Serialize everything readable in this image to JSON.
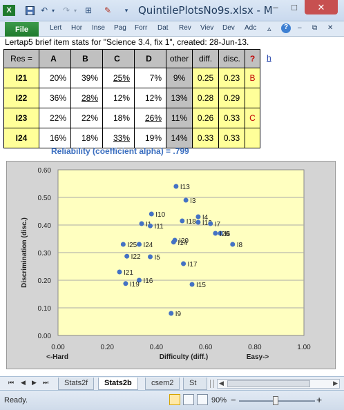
{
  "window": {
    "title": "QuintilePlotsNo9s.xlsx - M",
    "minimize": "–",
    "maximize": "□",
    "close": "✕"
  },
  "ribbon": {
    "file_tab": "File",
    "tabs": [
      "Lert",
      "Hor",
      "Inse",
      "Pag",
      "Forr",
      "Dat",
      "Rev",
      "Viev",
      "Dev",
      "Adc"
    ]
  },
  "sheet": {
    "header_line": "Lertap5 brief item stats for \"Science 3.4, fix 1\", created: 28-Jun-13.",
    "link_text": "h",
    "columns": [
      "Res =",
      "A",
      "B",
      "C",
      "D",
      "other",
      "diff.",
      "disc.",
      "?"
    ],
    "rows": [
      {
        "item": "I21",
        "A": "20%",
        "B": "39%",
        "C": "25%",
        "D": "7%",
        "other": "9%",
        "diff": "0.25",
        "disc": "0.23",
        "flag": "B",
        "key": "C"
      },
      {
        "item": "I22",
        "A": "36%",
        "B": "28%",
        "C": "12%",
        "D": "12%",
        "other": "13%",
        "diff": "0.28",
        "disc": "0.29",
        "flag": "",
        "key": "B"
      },
      {
        "item": "I23",
        "A": "22%",
        "B": "22%",
        "C": "18%",
        "D": "26%",
        "other": "11%",
        "diff": "0.26",
        "disc": "0.33",
        "flag": "C",
        "key": "D"
      },
      {
        "item": "I24",
        "A": "16%",
        "B": "18%",
        "C": "33%",
        "D": "19%",
        "other": "14%",
        "diff": "0.33",
        "disc": "0.33",
        "flag": "",
        "key": "C"
      }
    ],
    "reliability": "Reliability (coefficient alpha) =  .799"
  },
  "chart_data": {
    "type": "scatter",
    "xlabel": "Difficulty (diff.)",
    "ylabel": "Discrimination (disc.)",
    "xlabel_left": "<-Hard",
    "xlabel_right": "Easy->",
    "xlim": [
      0,
      1
    ],
    "ylim": [
      0,
      0.6
    ],
    "x_ticks": [
      "0.00",
      "0.20",
      "0.40",
      "0.60",
      "0.80",
      "1.00"
    ],
    "y_ticks": [
      "0.00",
      "0.10",
      "0.20",
      "0.30",
      "0.40",
      "0.50",
      "0.60"
    ],
    "grid": "y-major",
    "plot_bg": "#ffffc0",
    "marker_color": "#4472c4",
    "points": [
      {
        "label": "I13",
        "x": 0.48,
        "y": 0.54
      },
      {
        "label": "I3",
        "x": 0.52,
        "y": 0.49
      },
      {
        "label": "I10",
        "x": 0.38,
        "y": 0.44
      },
      {
        "label": "I4",
        "x": 0.57,
        "y": 0.43
      },
      {
        "label": "I1",
        "x": 0.34,
        "y": 0.405
      },
      {
        "label": "I18",
        "x": 0.505,
        "y": 0.415
      },
      {
        "label": "I12",
        "x": 0.57,
        "y": 0.41
      },
      {
        "label": "I7",
        "x": 0.62,
        "y": 0.405
      },
      {
        "label": "I11",
        "x": 0.375,
        "y": 0.397
      },
      {
        "label": "I6",
        "x": 0.66,
        "y": 0.37
      },
      {
        "label": "I26",
        "x": 0.64,
        "y": 0.37
      },
      {
        "label": "I8",
        "x": 0.71,
        "y": 0.33
      },
      {
        "label": "I20",
        "x": 0.475,
        "y": 0.345
      },
      {
        "label": "I14",
        "x": 0.47,
        "y": 0.338
      },
      {
        "label": "I25",
        "x": 0.265,
        "y": 0.33
      },
      {
        "label": "I24",
        "x": 0.33,
        "y": 0.33
      },
      {
        "label": "I22",
        "x": 0.28,
        "y": 0.287
      },
      {
        "label": "I5",
        "x": 0.375,
        "y": 0.285
      },
      {
        "label": "I17",
        "x": 0.51,
        "y": 0.26
      },
      {
        "label": "I21",
        "x": 0.25,
        "y": 0.23
      },
      {
        "label": "I16",
        "x": 0.33,
        "y": 0.2
      },
      {
        "label": "I19",
        "x": 0.275,
        "y": 0.188
      },
      {
        "label": "I15",
        "x": 0.545,
        "y": 0.185
      },
      {
        "label": "I9",
        "x": 0.46,
        "y": 0.08
      }
    ]
  },
  "sheet_tabs": {
    "nav": [
      "⏮",
      "◀",
      "▶",
      "⏭"
    ],
    "tabs": [
      "Stats2f",
      "Stats2b",
      "csem2",
      "St"
    ],
    "active": "Stats2b"
  },
  "status": {
    "ready": "Ready.",
    "zoom": "90%",
    "zoom_minus": "−",
    "zoom_plus": "+"
  },
  "icons": {
    "excel": "excel-logo-icon",
    "save": "save-icon",
    "undo": "undo-icon",
    "redo": "redo-icon"
  }
}
